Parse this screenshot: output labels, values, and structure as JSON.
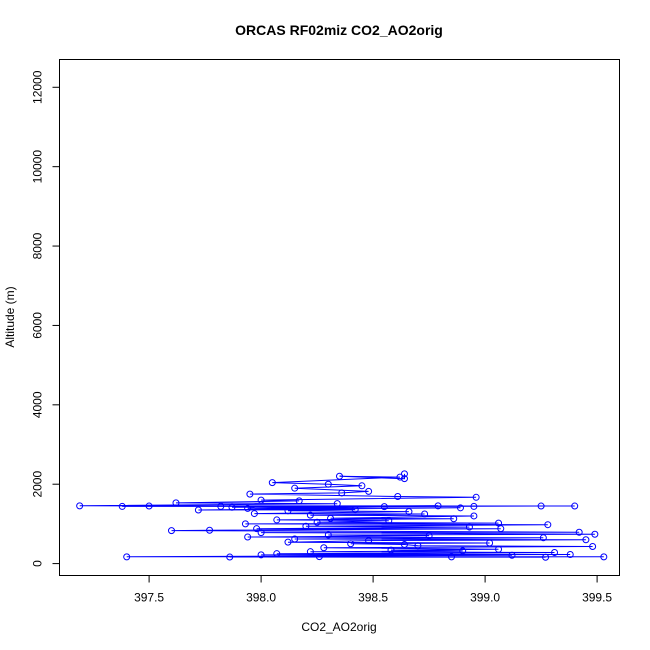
{
  "chart_data": {
    "type": "scatter",
    "title": "ORCAS RF02miz CO2_AO2orig",
    "xlabel": "CO2_AO2orig",
    "ylabel": "Altitude (m)",
    "xlim": [
      397.1,
      399.6
    ],
    "ylim": [
      -300,
      12700
    ],
    "xticks": [
      "397.5",
      "398.0",
      "398.5",
      "399.0",
      "399.5"
    ],
    "yticks": [
      "0",
      "2000",
      "4000",
      "6000",
      "8000",
      "10000",
      "12000"
    ],
    "grid": false,
    "legend": "none",
    "series_color": "#0000ff",
    "series": [
      {
        "connected": true,
        "marker": "open-circle",
        "points": [
          [
            398.64,
            2260
          ],
          [
            398.64,
            2140
          ],
          [
            398.35,
            2200
          ],
          [
            398.62,
            2180
          ],
          [
            398.05,
            2040
          ],
          [
            398.3,
            2000
          ],
          [
            398.45,
            1960
          ],
          [
            398.15,
            1900
          ],
          [
            398.48,
            1820
          ],
          [
            398.36,
            1780
          ],
          [
            397.95,
            1750
          ],
          [
            398.61,
            1690
          ],
          [
            398.96,
            1670
          ],
          [
            398.0,
            1600
          ],
          [
            398.17,
            1580
          ],
          [
            397.62,
            1530
          ],
          [
            398.34,
            1510
          ],
          [
            397.19,
            1455
          ],
          [
            399.4,
            1450
          ],
          [
            397.38,
            1440
          ],
          [
            398.95,
            1440
          ],
          [
            397.5,
            1450
          ],
          [
            398.79,
            1455
          ],
          [
            397.82,
            1440
          ],
          [
            399.25,
            1450
          ],
          [
            397.87,
            1420
          ],
          [
            398.55,
            1435
          ],
          [
            397.94,
            1390
          ],
          [
            398.89,
            1405
          ],
          [
            397.72,
            1350
          ],
          [
            398.42,
            1360
          ],
          [
            398.12,
            1330
          ],
          [
            398.66,
            1310
          ],
          [
            397.97,
            1260
          ],
          [
            398.73,
            1250
          ],
          [
            398.22,
            1220
          ],
          [
            398.95,
            1200
          ],
          [
            398.31,
            1140
          ],
          [
            398.86,
            1130
          ],
          [
            398.07,
            1100
          ],
          [
            398.57,
            1080
          ],
          [
            398.25,
            1040
          ],
          [
            399.06,
            1020
          ],
          [
            397.93,
            1000
          ],
          [
            399.28,
            980
          ],
          [
            398.2,
            940
          ],
          [
            398.93,
            920
          ],
          [
            397.98,
            880
          ],
          [
            399.07,
            880
          ],
          [
            397.77,
            840
          ],
          [
            397.6,
            830
          ],
          [
            399.42,
            790
          ],
          [
            398.0,
            780
          ],
          [
            399.49,
            740
          ],
          [
            398.3,
            720
          ],
          [
            398.75,
            700
          ],
          [
            397.94,
            670
          ],
          [
            399.26,
            650
          ],
          [
            398.15,
            620
          ],
          [
            399.45,
            600
          ],
          [
            398.48,
            580
          ],
          [
            398.12,
            540
          ],
          [
            399.02,
            520
          ],
          [
            398.4,
            500
          ],
          [
            398.64,
            480
          ],
          [
            398.7,
            450
          ],
          [
            399.48,
            430
          ],
          [
            398.28,
            400
          ],
          [
            399.06,
            360
          ],
          [
            398.58,
            340
          ],
          [
            398.9,
            320
          ],
          [
            398.22,
            300
          ],
          [
            399.31,
            280
          ],
          [
            398.07,
            250
          ],
          [
            399.38,
            230
          ],
          [
            398.0,
            220
          ],
          [
            399.12,
            210
          ],
          [
            397.4,
            170
          ],
          [
            399.53,
            170
          ],
          [
            397.86,
            165
          ],
          [
            399.27,
            160
          ],
          [
            398.26,
            175
          ],
          [
            398.85,
            170
          ]
        ]
      }
    ]
  }
}
